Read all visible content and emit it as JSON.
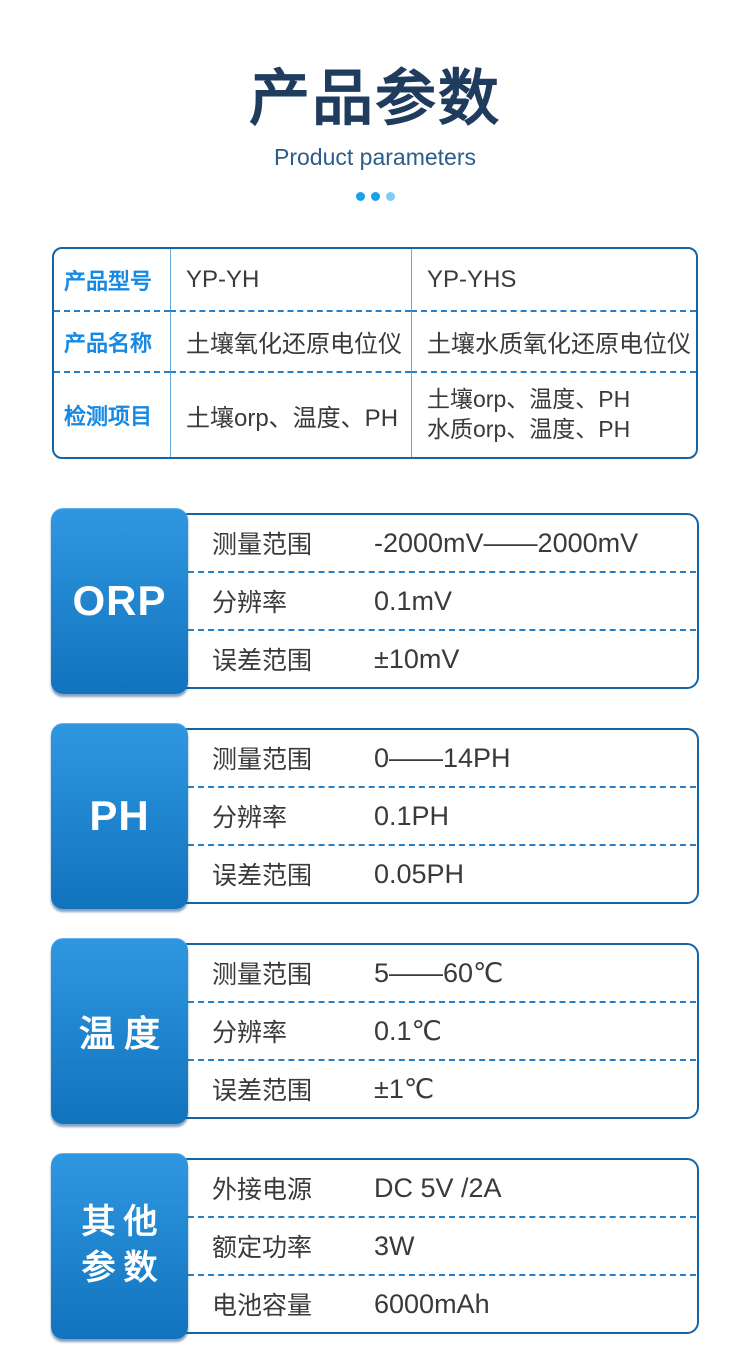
{
  "header": {
    "title": "产品参数",
    "subtitle": "Product parameters"
  },
  "colors": {
    "title": "#1f3c5e",
    "subtitle": "#2b5c8a",
    "accent_blue": "#1789e3",
    "border_blue": "#1465a8",
    "dash_blue": "#2a7fc4",
    "vline_blue": "#69a8d6",
    "dot1": "#1aa0ea",
    "dot2": "#1aa0ea",
    "dot3": "#7fcdf5",
    "tab_top": "#2f97e0",
    "tab_bottom": "#1173bd",
    "text": "#3a3a3a"
  },
  "spec_table": {
    "rows": [
      {
        "label": "产品型号",
        "yp_yh": "YP-YH",
        "yp_yhs": "YP-YHS"
      },
      {
        "label": "产品名称",
        "yp_yh": "土壤氧化还原电位仪",
        "yp_yhs": "土壤水质氧化还原电位仪"
      },
      {
        "label": "检测项目",
        "yp_yh": "土壤orp、温度、PH",
        "yp_yhs_line1": "土壤orp、温度、PH",
        "yp_yhs_line2": "水质orp、温度、PH"
      }
    ]
  },
  "sections": [
    {
      "tab": "ORP",
      "rows": [
        {
          "label": "测量范围",
          "value": "-2000mV——2000mV"
        },
        {
          "label": "分辨率",
          "value": "0.1mV"
        },
        {
          "label": "误差范围",
          "value": "±10mV"
        }
      ]
    },
    {
      "tab": "PH",
      "rows": [
        {
          "label": "测量范围",
          "value": "0——14PH"
        },
        {
          "label": "分辨率",
          "value": "0.1PH"
        },
        {
          "label": "误差范围",
          "value": "0.05PH"
        }
      ]
    },
    {
      "tab": "温度",
      "rows": [
        {
          "label": "测量范围",
          "value": "5——60℃"
        },
        {
          "label": "分辨率",
          "value": "0.1℃"
        },
        {
          "label": "误差范围",
          "value": "±1℃"
        }
      ]
    },
    {
      "tab_lines": [
        "其他",
        "参数"
      ],
      "rows": [
        {
          "label": "外接电源",
          "value": "DC 5V /2A"
        },
        {
          "label": "额定功率",
          "value": "3W"
        },
        {
          "label": "电池容量",
          "value": "6000mAh"
        }
      ]
    }
  ]
}
